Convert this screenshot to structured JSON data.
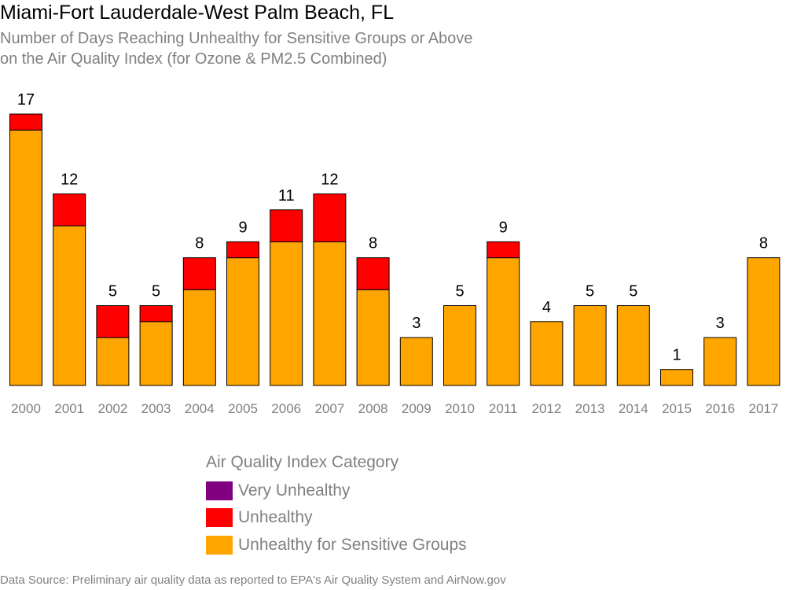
{
  "title": "Miami-Fort Lauderdale-West Palm Beach, FL",
  "subtitle_line1": "Number of Days Reaching Unhealthy for Sensitive Groups or Above",
  "subtitle_line2": "on the Air Quality Index (for Ozone & PM2.5 Combined)",
  "source": "Data Source: Preliminary air quality data as reported to EPA's Air Quality System and AirNow.gov",
  "legend": {
    "title": "Air Quality Index Category",
    "items": [
      {
        "label": "Very Unhealthy",
        "color": "#800080"
      },
      {
        "label": "Unhealthy",
        "color": "#ff0000"
      },
      {
        "label": "Unhealthy for Sensitive Groups",
        "color": "#ffa500"
      }
    ]
  },
  "chart_data": {
    "type": "bar",
    "stacked": true,
    "categories": [
      "2000",
      "2001",
      "2002",
      "2003",
      "2004",
      "2005",
      "2006",
      "2007",
      "2008",
      "2009",
      "2010",
      "2011",
      "2012",
      "2013",
      "2014",
      "2015",
      "2016",
      "2017"
    ],
    "series": [
      {
        "name": "Unhealthy for Sensitive Groups",
        "color": "#ffa500",
        "values": [
          16,
          10,
          3,
          4,
          6,
          8,
          9,
          9,
          6,
          3,
          5,
          8,
          4,
          5,
          5,
          1,
          3,
          8
        ]
      },
      {
        "name": "Unhealthy",
        "color": "#ff0000",
        "values": [
          1,
          2,
          2,
          1,
          2,
          1,
          2,
          3,
          2,
          0,
          0,
          1,
          0,
          0,
          0,
          0,
          0,
          0
        ]
      },
      {
        "name": "Very Unhealthy",
        "color": "#800080",
        "values": [
          0,
          0,
          0,
          0,
          0,
          0,
          0,
          0,
          0,
          0,
          0,
          0,
          0,
          0,
          0,
          0,
          0,
          0
        ]
      }
    ],
    "totals": [
      17,
      12,
      5,
      5,
      8,
      9,
      11,
      12,
      8,
      3,
      5,
      9,
      4,
      5,
      5,
      1,
      3,
      8
    ],
    "ylim": [
      0,
      17
    ],
    "grid": false,
    "legend_position": "bottom"
  }
}
